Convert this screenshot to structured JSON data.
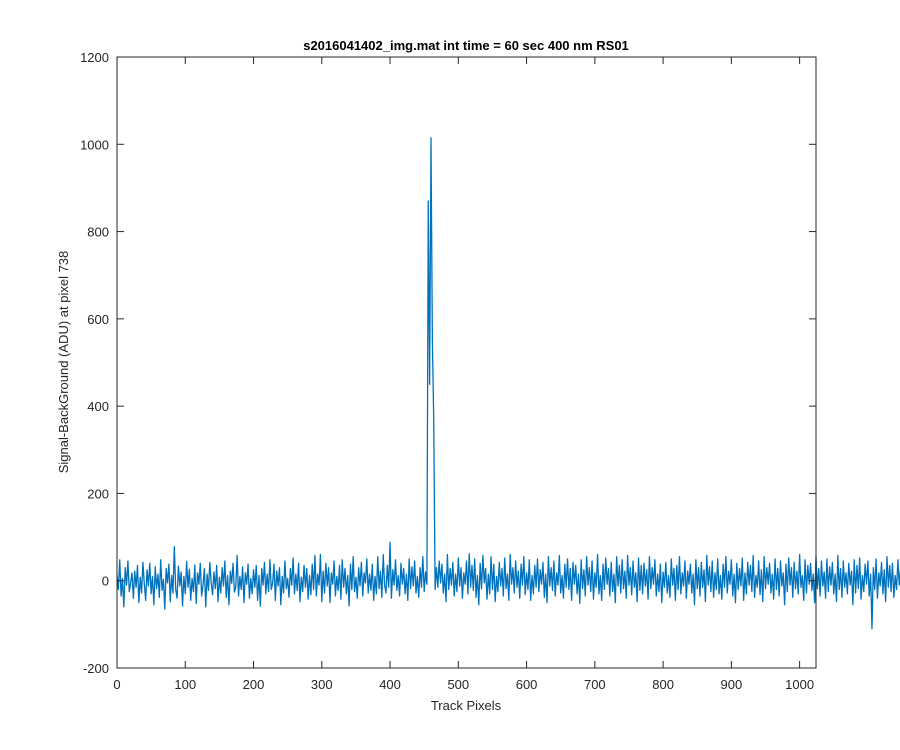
{
  "chart_data": {
    "type": "line",
    "title": "s2016041402_img.mat int time = 60 sec  400 nm RS01",
    "xlabel": "Track Pixels",
    "ylabel": "Signal-BackGround (ADU) at pixel 738",
    "xlim": [
      0,
      1024
    ],
    "ylim": [
      -200,
      1200
    ],
    "xticks": [
      0,
      100,
      200,
      300,
      400,
      500,
      600,
      700,
      800,
      900,
      1000
    ],
    "yticks": [
      -200,
      0,
      200,
      400,
      600,
      800,
      1000,
      1200
    ],
    "grid": false,
    "line_color": "#0072bd",
    "series": [
      {
        "x_start": 0,
        "x_step": 2,
        "values": [
          12,
          -20,
          48,
          -35,
          5,
          -60,
          30,
          -10,
          45,
          -25,
          -5,
          18,
          -40,
          22,
          -15,
          35,
          -50,
          8,
          -28,
          42,
          -8,
          -45,
          25,
          -12,
          40,
          -30,
          10,
          -55,
          32,
          -18,
          15,
          -38,
          48,
          -22,
          3,
          -65,
          28,
          -5,
          38,
          -48,
          12,
          -28,
          78,
          -20,
          -40,
          33,
          -12,
          20,
          -58,
          10,
          -30,
          44,
          -15,
          26,
          -45,
          5,
          -25,
          36,
          -52,
          18,
          -8,
          40,
          -35,
          -10,
          28,
          -60,
          15,
          -22,
          42,
          -5,
          -32,
          20,
          -18,
          35,
          -48,
          8,
          -28,
          30,
          -12,
          45,
          -38,
          12,
          -55,
          22,
          -6,
          40,
          -26,
          -15,
          58,
          -35,
          10,
          -20,
          32,
          -50,
          18,
          -8,
          38,
          -40,
          5,
          -30,
          25,
          -15,
          35,
          -45,
          12,
          -58,
          28,
          -10,
          42,
          -30,
          15,
          -25,
          48,
          -20,
          -5,
          38,
          -45,
          22,
          -12,
          30,
          -55,
          10,
          -28,
          45,
          -18,
          5,
          -38,
          28,
          -10,
          52,
          -30,
          15,
          -22,
          40,
          -48,
          8,
          -25,
          35,
          -15,
          28,
          -42,
          12,
          -32,
          38,
          -20,
          58,
          -35,
          15,
          -10,
          60,
          -48,
          22,
          -28,
          40,
          -12,
          30,
          -50,
          18,
          -8,
          45,
          -35,
          10,
          -22,
          35,
          -42,
          48,
          -15,
          28,
          -30,
          12,
          -58,
          38,
          -20,
          55,
          -25,
          8,
          -40,
          30,
          -12,
          42,
          -35,
          18,
          -5,
          50,
          -28,
          15,
          -22,
          38,
          -45,
          10,
          -30,
          55,
          -18,
          22,
          -38,
          60,
          -10,
          -28,
          35,
          -15,
          88,
          -40,
          25,
          -10,
          48,
          -22,
          12,
          -35,
          40,
          -8,
          28,
          -30,
          15,
          -45,
          50,
          -18,
          32,
          -12,
          45,
          -28,
          10,
          -38,
          30,
          -15,
          55,
          -25,
          20,
          -8,
          870,
          450,
          1015,
          550,
          370,
          -20,
          30,
          -15,
          45,
          -5,
          38,
          -28,
          15,
          -48,
          60,
          -20,
          28,
          -10,
          42,
          -35,
          15,
          -25,
          52,
          -12,
          30,
          -40,
          18,
          -8,
          45,
          -30,
          62,
          -15,
          35,
          -22,
          50,
          -38,
          12,
          -55,
          40,
          -18,
          58,
          -5,
          28,
          -42,
          15,
          -30,
          55,
          -20,
          38,
          -48,
          10,
          -25,
          42,
          -12,
          28,
          -35,
          52,
          -18,
          15,
          -45,
          60,
          -8,
          30,
          -28,
          45,
          -15,
          22,
          -40,
          38,
          -10,
          55,
          -32,
          18,
          -20,
          48,
          -45,
          12,
          -30,
          35,
          -15,
          50,
          -25,
          25,
          -8,
          42,
          -38,
          15,
          -50,
          55,
          -12,
          30,
          -22,
          45,
          -35,
          18,
          -10,
          58,
          -28,
          12,
          -40,
          38,
          -15,
          50,
          -20,
          28,
          -45,
          42,
          -8,
          35,
          -30,
          15,
          -52,
          48,
          -18,
          25,
          -35,
          55,
          -10,
          30,
          -25,
          45,
          -42,
          18,
          -15,
          60,
          -30,
          12,
          -45,
          38,
          -20,
          52,
          -8,
          28,
          -35,
          42,
          -25,
          15,
          -50,
          55,
          -12,
          35,
          -28,
          48,
          -18,
          22,
          -40,
          58,
          -10,
          30,
          -32,
          45,
          -15,
          18,
          -48,
          52,
          -22,
          35,
          -30,
          40,
          -12,
          25,
          -42,
          55,
          -18,
          30,
          -8,
          48,
          -35,
          15,
          -25,
          38,
          -50,
          20,
          -15,
          42,
          -28,
          12,
          -38,
          50,
          -10,
          28,
          -45,
          35,
          -20,
          55,
          -30,
          18,
          -12,
          45,
          -40,
          22,
          -8,
          38,
          -28,
          15,
          -55,
          48,
          -18,
          30,
          -35,
          42,
          -15,
          25,
          -48,
          58,
          -10,
          32,
          -25,
          45,
          -38,
          18,
          -20,
          50,
          -30,
          12,
          -42,
          38,
          -15,
          55,
          -28,
          22,
          -8,
          48,
          -35,
          15,
          -50,
          40,
          -20,
          28,
          -12,
          52,
          -45,
          18,
          -30,
          42,
          -10,
          35,
          -25,
          58,
          -38,
          12,
          -15,
          45,
          -32,
          25,
          -48,
          55,
          -18,
          30,
          -8,
          40,
          -28,
          15,
          -42,
          50,
          -20,
          28,
          -35,
          45,
          -12,
          18,
          -55,
          38,
          -25,
          52,
          -10,
          30,
          -38,
          42,
          -18,
          22,
          -30,
          60,
          -15,
          12,
          -45,
          48,
          -28,
          35,
          -8,
          40,
          -22,
          15,
          -50,
          55,
          -18,
          28,
          -35,
          45,
          -12,
          20,
          -40,
          50,
          -25,
          32,
          -10,
          42,
          -30,
          15,
          -48,
          58,
          -20,
          28,
          -38,
          45,
          -15,
          18,
          -30,
          40,
          -10,
          22,
          -55,
          48,
          -28,
          35,
          -18,
          52,
          -42,
          12,
          -25,
          38,
          -8,
          45,
          -35,
          15,
          -110,
          30,
          -20,
          50,
          -40,
          18,
          -12,
          42,
          -30,
          25,
          -48,
          55,
          -15,
          35,
          -25,
          40,
          -38,
          12,
          -20,
          48,
          -10,
          30,
          -45,
          22,
          -18,
          52,
          -30,
          38,
          -8,
          45,
          -35,
          15,
          -28,
          42,
          -50,
          20,
          -12,
          35,
          -22,
          48,
          -15,
          -40
        ]
      }
    ]
  }
}
